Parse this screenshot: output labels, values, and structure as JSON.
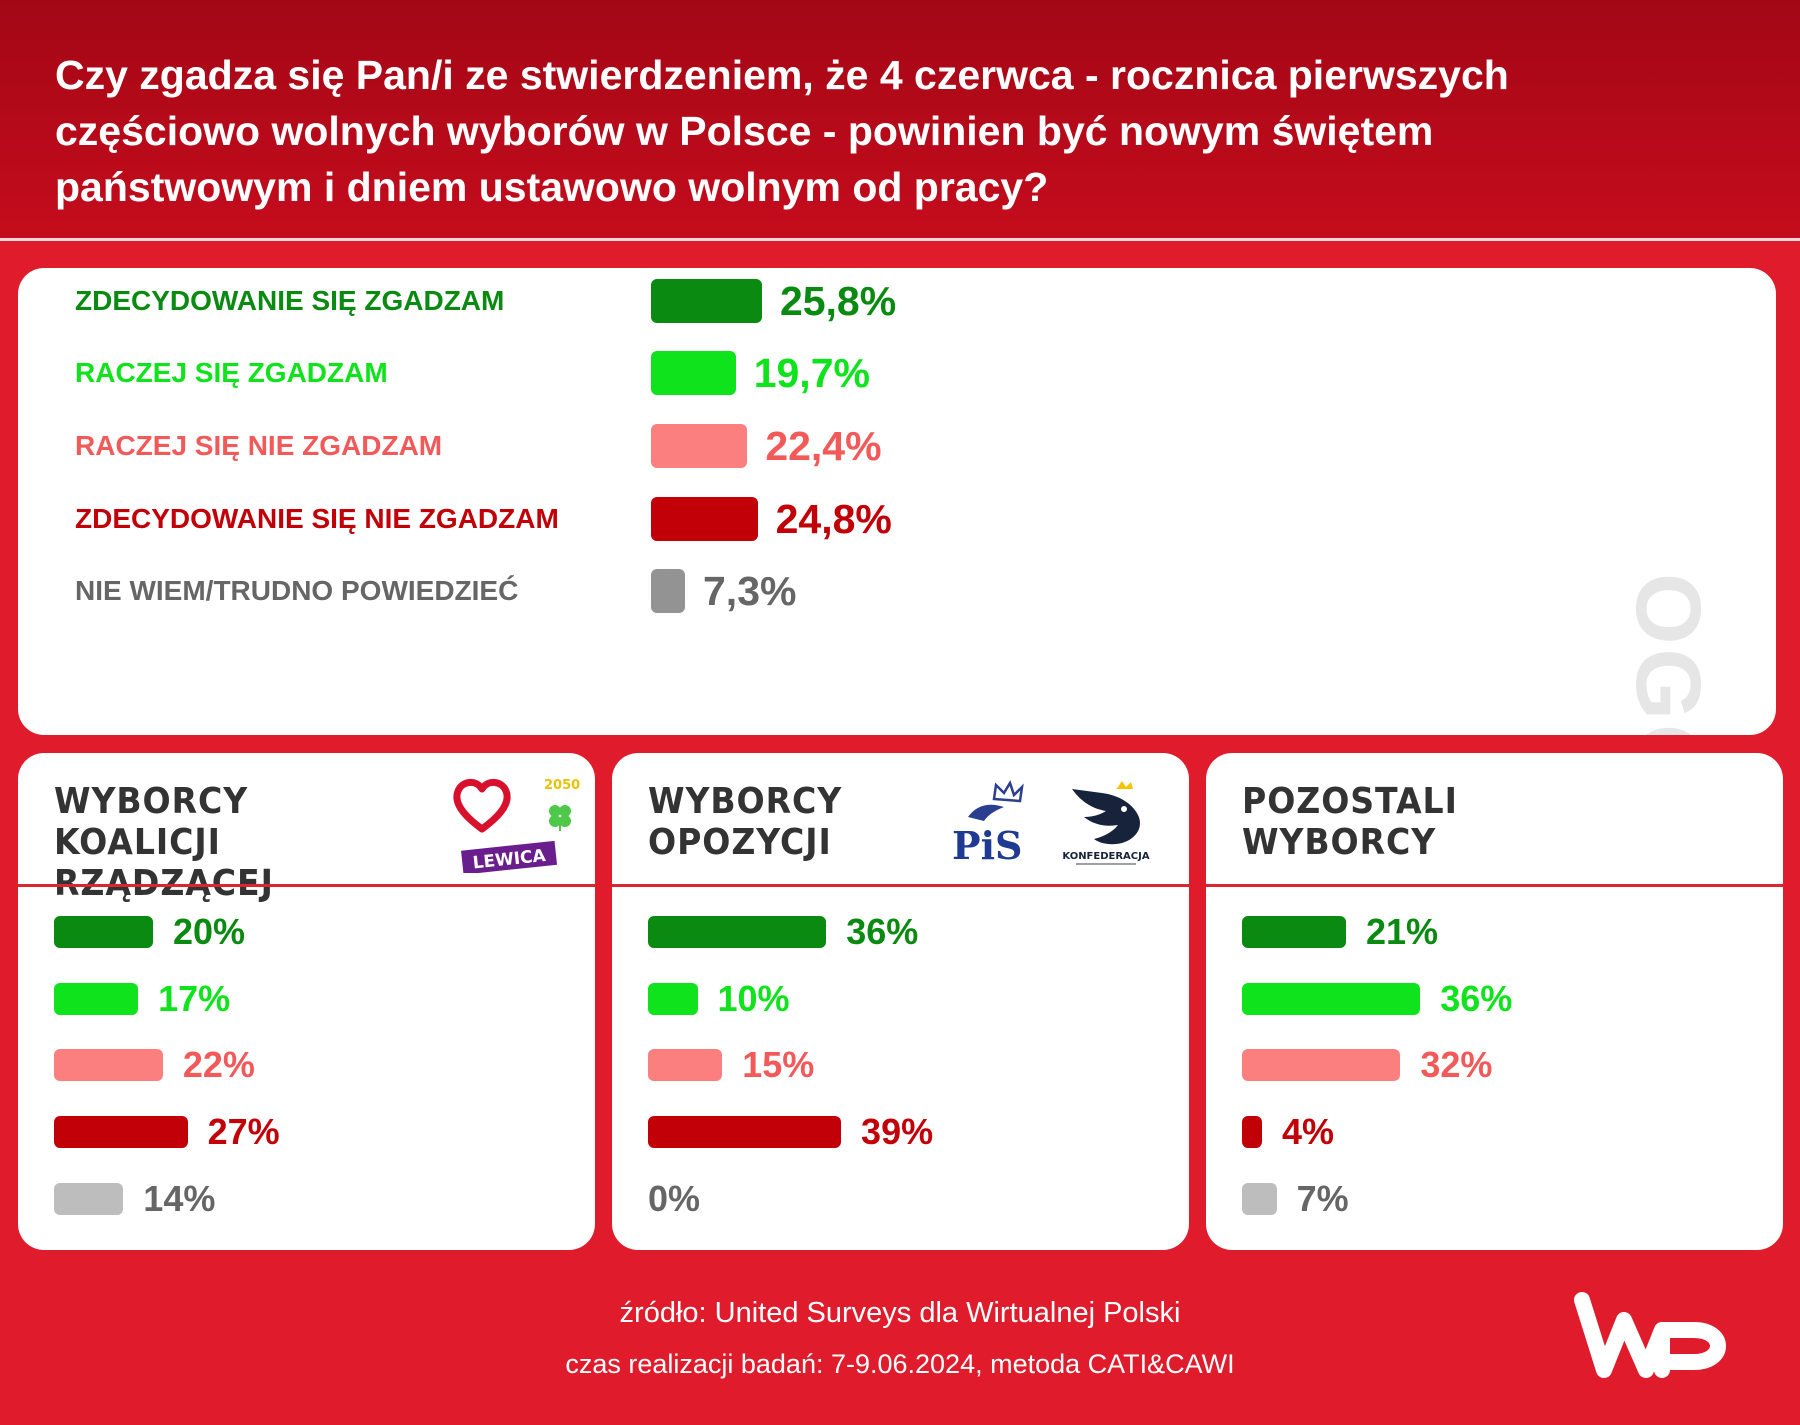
{
  "header": {
    "title": "Czy zgadza się Pan/i ze stwierdzeniem, że 4 czerwca - rocznica pierwszych częściowo wolnych wyborów w Polsce - powinien być nowym świętem państwowym i dniem ustawowo wolnym od pracy?"
  },
  "colors": {
    "strong_agree": "#0b8a12",
    "agree": "#0fe31c",
    "disagree": "#fb7f7f",
    "strong_disagree": "#c10008",
    "dont_know": "#939393",
    "dont_know_light": "#bdbdbd",
    "background": "#e01b2b"
  },
  "chart_data": [
    {
      "type": "bar",
      "title": "OGÓŁEM",
      "categories": [
        "ZDECYDOWANIE SIĘ ZGADZAM",
        "RACZEJ SIĘ ZGADZAM",
        "RACZEJ SIĘ NIE ZGADZAM",
        "ZDECYDOWANIE SIĘ NIE ZGADZAM",
        "NIE WIEM/TRUDNO POWIEDZIEĆ"
      ],
      "values": [
        25.8,
        19.7,
        22.4,
        24.8,
        7.3
      ],
      "labels": [
        "25,8%",
        "19,7%",
        "22,4%",
        "24,8%",
        "7,3%"
      ]
    },
    {
      "type": "bar",
      "title_lines": [
        "WYBORCY",
        "KOALICJI RZĄDZĄCEJ"
      ],
      "categories": [
        "ZDECYDOWANIE SIĘ ZGADZAM",
        "RACZEJ SIĘ ZGADZAM",
        "RACZEJ SIĘ NIE ZGADZAM",
        "ZDECYDOWANIE SIĘ NIE ZGADZAM",
        "NIE WIEM/TRUDNO POWIEDZIEĆ"
      ],
      "values": [
        20,
        17,
        22,
        27,
        14
      ],
      "labels": [
        "20%",
        "17%",
        "22%",
        "27%",
        "14%"
      ]
    },
    {
      "type": "bar",
      "title_lines": [
        "WYBORCY",
        "OPOZYCJI"
      ],
      "categories": [
        "ZDECYDOWANIE SIĘ ZGADZAM",
        "RACZEJ SIĘ ZGADZAM",
        "RACZEJ SIĘ NIE ZGADZAM",
        "ZDECYDOWANIE SIĘ NIE ZGADZAM",
        "NIE WIEM/TRUDNO POWIEDZIEĆ"
      ],
      "values": [
        36,
        10,
        15,
        39,
        0
      ],
      "labels": [
        "36%",
        "10%",
        "15%",
        "39%",
        "0%"
      ]
    },
    {
      "type": "bar",
      "title_lines": [
        "POZOSTALI",
        "WYBORCY"
      ],
      "categories": [
        "ZDECYDOWANIE SIĘ ZGADZAM",
        "RACZEJ SIĘ ZGADZAM",
        "RACZEJ SIĘ NIE ZGADZAM",
        "ZDECYDOWANIE SIĘ NIE ZGADZAM",
        "NIE WIEM/TRUDNO POWIEDZIEĆ"
      ],
      "values": [
        21,
        36,
        32,
        4,
        7
      ],
      "labels": [
        "21%",
        "36%",
        "32%",
        "4%",
        "7%"
      ]
    }
  ],
  "logos": {
    "coalition_badge": "LEWICA",
    "coalition_small": "2050",
    "opposition_pis": "PiS",
    "opposition_konf": "KONFEDERACJA",
    "brand": "WP"
  },
  "footer": {
    "source": "źródło: United Surveys dla Wirtualnej Polski",
    "method": "czas realizacji badań: 7-9.06.2024, metoda CATI&CAWI"
  }
}
